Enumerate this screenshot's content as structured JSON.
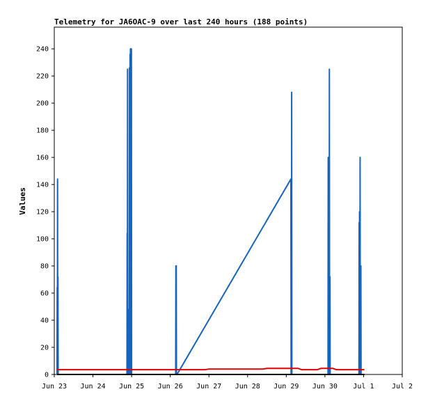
{
  "chart_data": {
    "type": "line",
    "title": "Telemetry for JA6OAC-9 over last 240 hours (188 points)",
    "xlabel": "",
    "ylabel": "Values",
    "ylim": [
      0,
      256
    ],
    "yticks": [
      0,
      20,
      40,
      60,
      80,
      100,
      120,
      140,
      160,
      180,
      200,
      220,
      240
    ],
    "xlim": [
      0,
      9
    ],
    "xticks": [
      {
        "label": "Jun 23",
        "day": 0
      },
      {
        "label": "Jun 24",
        "day": 1
      },
      {
        "label": "Jun 25",
        "day": 2
      },
      {
        "label": "Jun 26",
        "day": 3
      },
      {
        "label": "Jun 27",
        "day": 4
      },
      {
        "label": "Jun 28",
        "day": 5
      },
      {
        "label": "Jun 29",
        "day": 6
      },
      {
        "label": "Jun 30",
        "day": 7
      },
      {
        "label": "Jul 1",
        "day": 8
      },
      {
        "label": "Jul 2",
        "day": 9
      }
    ],
    "grid": false,
    "series": [
      {
        "color": "#1565c0",
        "x": [
          0.07,
          0.075,
          0.08,
          0.085,
          0.09,
          0.095,
          0.1,
          0.105,
          0.11,
          1.88,
          1.885,
          1.89,
          1.895,
          1.9,
          1.905,
          1.91,
          1.92,
          1.925,
          1.93,
          1.94,
          1.945,
          1.95,
          1.96,
          1.965,
          1.97,
          1.975,
          1.98,
          1.985,
          1.99,
          1.995,
          2.0,
          2.005,
          2.01,
          3.14,
          3.145,
          3.15,
          3.155,
          3.16,
          3.17,
          3.175,
          6.12,
          6.125,
          6.13,
          6.135,
          6.14,
          6.145,
          7.08,
          7.085,
          7.09,
          7.095,
          7.1,
          7.11,
          7.115,
          7.12,
          7.125,
          7.13,
          7.135,
          7.14,
          7.145,
          7.15,
          7.155,
          7.16,
          7.165,
          7.17,
          7.88,
          7.885,
          7.89,
          7.895,
          7.9,
          7.905,
          7.91,
          7.915,
          7.92,
          7.925,
          7.93,
          7.935,
          7.94,
          7.945,
          7.95
        ],
        "values": [
          0,
          64,
          0,
          144,
          0,
          72,
          0,
          0,
          0,
          0,
          104,
          0,
          225,
          0,
          40,
          0,
          0,
          48,
          0,
          0,
          226,
          0,
          236,
          0,
          240,
          0,
          240,
          0,
          0,
          240,
          0,
          0,
          0,
          0,
          80,
          0,
          80,
          0,
          0,
          0,
          144,
          0,
          144,
          0,
          208,
          0,
          0,
          160,
          0,
          160,
          0,
          0,
          225,
          0,
          0,
          72,
          0,
          0,
          0,
          0,
          0,
          0,
          0,
          0,
          0,
          112,
          0,
          120,
          0,
          0,
          160,
          0,
          80,
          0,
          80,
          0,
          0,
          0,
          0
        ]
      },
      {
        "color": "#e00000",
        "x": [
          0.07,
          1.0,
          2.0,
          3.0,
          3.9,
          4.0,
          5.0,
          5.4,
          5.5,
          6.3,
          6.4,
          6.8,
          6.9,
          7.2,
          7.3,
          8.0,
          8.02
        ],
        "values": [
          3.5,
          3.5,
          3.5,
          3.5,
          3.5,
          4,
          4,
          4,
          4.5,
          4.5,
          3.5,
          3.5,
          4.5,
          4.5,
          3.5,
          3.5,
          3.5
        ]
      },
      {
        "color": "#000000",
        "x": [
          0.07,
          8.02
        ],
        "values": [
          0,
          0
        ]
      }
    ]
  }
}
